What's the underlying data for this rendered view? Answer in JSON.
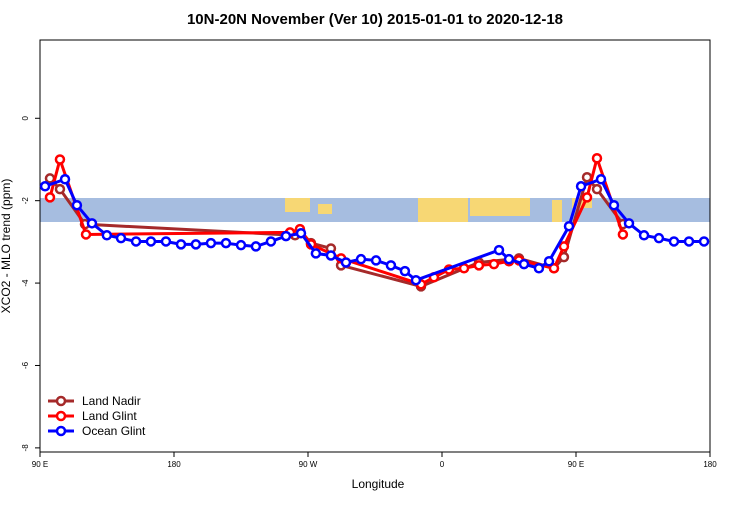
{
  "chart_data": {
    "type": "line",
    "title": "10N-20N November (Ver 10)   2015-01-01 to 2020-12-18",
    "x_label": "Longitude",
    "y_label": "XCO2 - MLO trend (ppm)",
    "xlim": [
      90,
      540
    ],
    "xticks": [
      {
        "value": 90,
        "label": "90 E"
      },
      180,
      {
        "value": 270,
        "label": "90 W"
      },
      {
        "value": 360,
        "label": "0"
      },
      {
        "value": 450,
        "label": "90 E"
      },
      {
        "value": 540,
        "label": "180"
      }
    ],
    "ylim": [
      -8.1,
      1.9
    ],
    "yticks": [
      0,
      -2,
      -4,
      -6,
      -8
    ],
    "legend": "bottomleft",
    "series": [
      {
        "name": "Land Nadir",
        "color": "#a52a2a",
        "x": [
          96.7,
          103.4,
          120.2,
          261.3,
          264.6,
          272.0,
          285.4,
          292.2,
          345.9,
          384.8,
          411.7,
          435.2,
          441.9,
          457.4,
          464.1,
          481.5
        ],
        "values": [
          -1.46,
          -1.72,
          -2.57,
          -2.84,
          -2.72,
          -3.03,
          -3.16,
          -3.57,
          -4.08,
          -3.5,
          -3.4,
          -3.64,
          -3.37,
          -1.43,
          -1.72,
          -2.57
        ]
      },
      {
        "name": "Land Glint",
        "color": "#ff0000",
        "x": [
          96.7,
          103.4,
          120.9,
          257.9,
          264.6,
          272.0,
          292.2,
          345.9,
          354.6,
          364.7,
          374.8,
          384.8,
          394.9,
          405.0,
          411.7,
          435.2,
          441.9,
          457.4,
          464.1,
          481.5
        ],
        "values": [
          -1.92,
          -1.0,
          -2.82,
          -2.77,
          -2.69,
          -3.06,
          -3.4,
          -4.03,
          -3.86,
          -3.67,
          -3.64,
          -3.57,
          -3.54,
          -3.47,
          -3.45,
          -3.64,
          -3.11,
          -1.92,
          -0.97,
          -2.82
        ]
      },
      {
        "name": "Ocean Glint",
        "color": "#0000ff",
        "x": [
          93.4,
          106.8,
          114.8,
          124.9,
          134.9,
          144.4,
          154.5,
          164.5,
          174.6,
          184.7,
          194.7,
          204.8,
          214.9,
          225.0,
          235.0,
          245.1,
          255.2,
          265.3,
          275.3,
          285.4,
          295.5,
          305.6,
          315.7,
          325.7,
          335.1,
          342.5,
          398.3,
          405.0,
          415.1,
          425.1,
          431.9,
          445.3,
          453.4,
          466.8,
          475.5,
          485.6,
          495.7,
          505.7,
          515.8,
          525.9,
          536.0
        ],
        "values": [
          -1.65,
          -1.48,
          -2.11,
          -2.55,
          -2.84,
          -2.91,
          -2.99,
          -2.99,
          -2.99,
          -3.06,
          -3.06,
          -3.03,
          -3.03,
          -3.08,
          -3.11,
          -2.99,
          -2.86,
          -2.79,
          -3.28,
          -3.33,
          -3.5,
          -3.42,
          -3.45,
          -3.57,
          -3.71,
          -3.93,
          -3.2,
          -3.42,
          -3.54,
          -3.64,
          -3.47,
          -2.62,
          -1.65,
          -1.48,
          -2.11,
          -2.55,
          -2.84,
          -2.91,
          -2.99,
          -2.99,
          -2.99
        ]
      }
    ]
  }
}
